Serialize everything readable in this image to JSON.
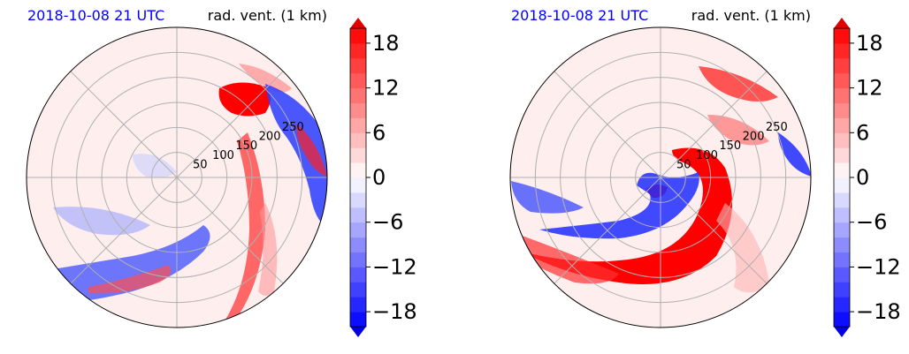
{
  "chart_data": [
    {
      "type": "heatmap",
      "projection": "polar",
      "title_left": "2018-10-08 21 UTC",
      "title_right": "rad. vent. (1 km)",
      "radial_tick_labels": [
        "50",
        "100",
        "150",
        "200",
        "250"
      ],
      "radial_ticks": [
        50,
        100,
        150,
        200,
        250
      ],
      "rlim": [
        0,
        300
      ],
      "grid": true,
      "colorbar": {
        "min": -20,
        "max": 20,
        "step": 2,
        "extend": "both",
        "tick_values": [
          -18,
          -12,
          -6,
          0,
          6,
          12,
          18
        ],
        "tick_labels": [
          "−18",
          "−12",
          "−6",
          "0",
          "6",
          "12",
          "18"
        ],
        "colormap": "bwr",
        "colors": {
          "negative": "#0000ff",
          "zero": "#ffffff",
          "positive": "#ff0000"
        }
      }
    },
    {
      "type": "heatmap",
      "projection": "polar",
      "title_left": "2018-10-08 21 UTC",
      "title_right": "rad. vent. (1 km)",
      "radial_tick_labels": [
        "50",
        "100",
        "150",
        "200",
        "250"
      ],
      "radial_ticks": [
        50,
        100,
        150,
        200,
        250
      ],
      "rlim": [
        0,
        300
      ],
      "grid": true,
      "colorbar": {
        "min": -20,
        "max": 20,
        "step": 2,
        "extend": "both",
        "tick_values": [
          -18,
          -12,
          -6,
          0,
          6,
          12,
          18
        ],
        "tick_labels": [
          "−18",
          "−12",
          "−6",
          "0",
          "6",
          "12",
          "18"
        ],
        "colormap": "bwr",
        "colors": {
          "negative": "#0000ff",
          "zero": "#ffffff",
          "positive": "#ff0000"
        }
      }
    }
  ]
}
